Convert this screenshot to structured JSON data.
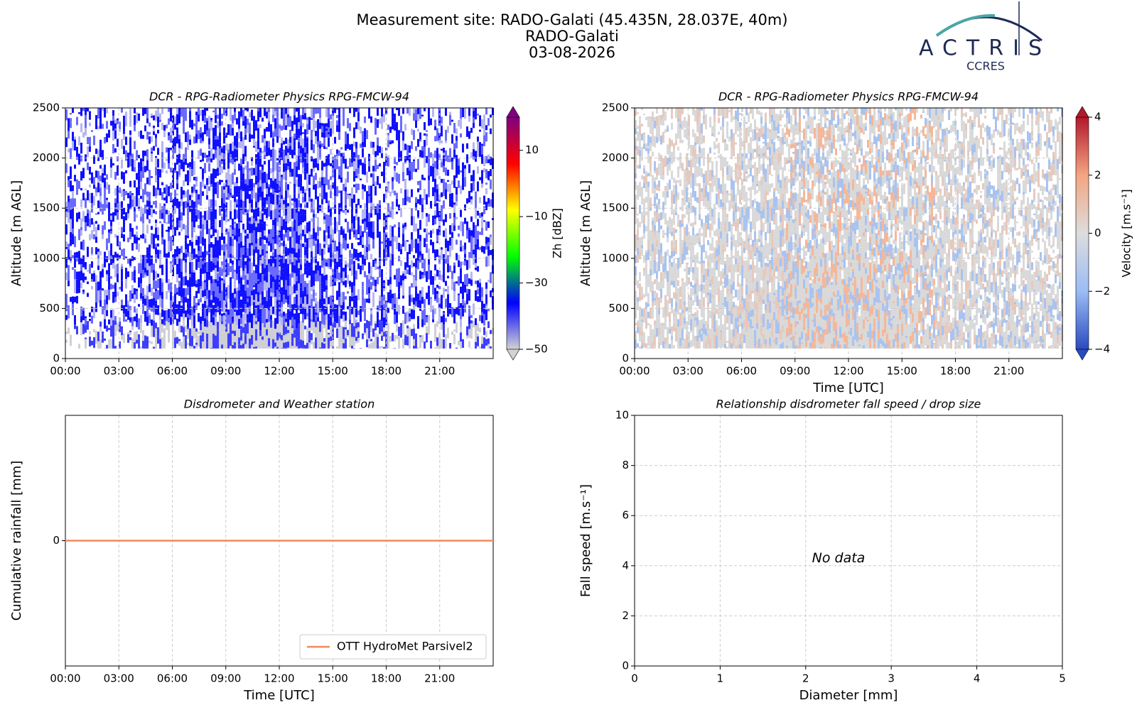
{
  "header": {
    "title": "Measurement site: RADO-Galati (45.435N, 28.037E, 40m)",
    "subtitle": "RADO-Galati",
    "date": "03-08-2026",
    "logo": "ACTRIS",
    "logo_sub": "CCRES"
  },
  "chart_data": [
    {
      "type": "heatmap",
      "title": "DCR - RPG-Radiometer Physics RPG-FMCW-94",
      "ylabel": "Altitude [m AGL]",
      "xlim": [
        0,
        24
      ],
      "xticks": [
        {
          "value": 0,
          "label": "00:00"
        },
        {
          "value": 3,
          "label": "03:00"
        },
        {
          "value": 6,
          "label": "06:00"
        },
        {
          "value": 9,
          "label": "09:00"
        },
        {
          "value": 12,
          "label": "12:00"
        },
        {
          "value": 15,
          "label": "15:00"
        },
        {
          "value": 18,
          "label": "18:00"
        },
        {
          "value": 21,
          "label": "21:00"
        }
      ],
      "ylim": [
        0,
        2500
      ],
      "yticks": [
        0,
        500,
        1000,
        1500,
        2000,
        2500
      ],
      "grid": true,
      "colorbar": {
        "label": "Zh [dBZ]",
        "lim": [
          -50,
          20
        ],
        "ticks": [
          -50,
          -30,
          -10,
          10
        ],
        "colormap": [
          "#d3d3d3",
          "#0000ff",
          "#00ff00",
          "#ffff00",
          "#ff0000",
          "#800080"
        ]
      }
    },
    {
      "type": "heatmap",
      "title": "DCR - RPG-Radiometer Physics RPG-FMCW-94",
      "ylabel": "Altitude [m AGL]",
      "xlabel": "Time [UTC]",
      "xlim": [
        0,
        24
      ],
      "xticks": [
        {
          "value": 0,
          "label": "00:00"
        },
        {
          "value": 3,
          "label": "03:00"
        },
        {
          "value": 6,
          "label": "06:00"
        },
        {
          "value": 9,
          "label": "09:00"
        },
        {
          "value": 12,
          "label": "12:00"
        },
        {
          "value": 15,
          "label": "15:00"
        },
        {
          "value": 18,
          "label": "18:00"
        },
        {
          "value": 21,
          "label": "21:00"
        }
      ],
      "ylim": [
        0,
        2500
      ],
      "yticks": [
        0,
        500,
        1000,
        1500,
        2000,
        2500
      ],
      "grid": true,
      "colorbar": {
        "label": "Velocity [m.s⁻¹]",
        "lim": [
          -4,
          4
        ],
        "ticks": [
          -4,
          -2,
          0,
          2,
          4
        ],
        "colormap": [
          "#2a4bbf",
          "#9bbcf5",
          "#dddddd",
          "#f4a582",
          "#b2182b"
        ]
      }
    },
    {
      "type": "line",
      "title": "Disdrometer and Weather station",
      "ylabel": "Cumulative rainfall [mm]",
      "xlabel": "Time [UTC]",
      "x": [
        0,
        24
      ],
      "series": [
        {
          "name": "OTT HydroMet Parsivel2",
          "color": "#f08a5d",
          "values": [
            0,
            0
          ]
        }
      ],
      "xlim": [
        0,
        24
      ],
      "xticks": [
        {
          "value": 0,
          "label": "00:00"
        },
        {
          "value": 3,
          "label": "03:00"
        },
        {
          "value": 6,
          "label": "06:00"
        },
        {
          "value": 9,
          "label": "09:00"
        },
        {
          "value": 12,
          "label": "12:00"
        },
        {
          "value": 15,
          "label": "15:00"
        },
        {
          "value": 18,
          "label": "18:00"
        },
        {
          "value": 21,
          "label": "21:00"
        }
      ],
      "ylim": [
        -0.055,
        0.055
      ],
      "yticks": [
        0
      ],
      "grid": "x",
      "legend": "lower right"
    },
    {
      "type": "scatter",
      "title": "Relationship disdrometer fall speed / drop size",
      "ylabel": "Fall speed [m.s⁻¹]",
      "xlabel": "Diameter [mm]",
      "xlim": [
        0,
        5
      ],
      "xticks": [
        0,
        1,
        2,
        3,
        4,
        5
      ],
      "ylim": [
        0,
        10
      ],
      "yticks": [
        0,
        2,
        4,
        6,
        8,
        10
      ],
      "grid": true,
      "annotation": "No data"
    }
  ]
}
